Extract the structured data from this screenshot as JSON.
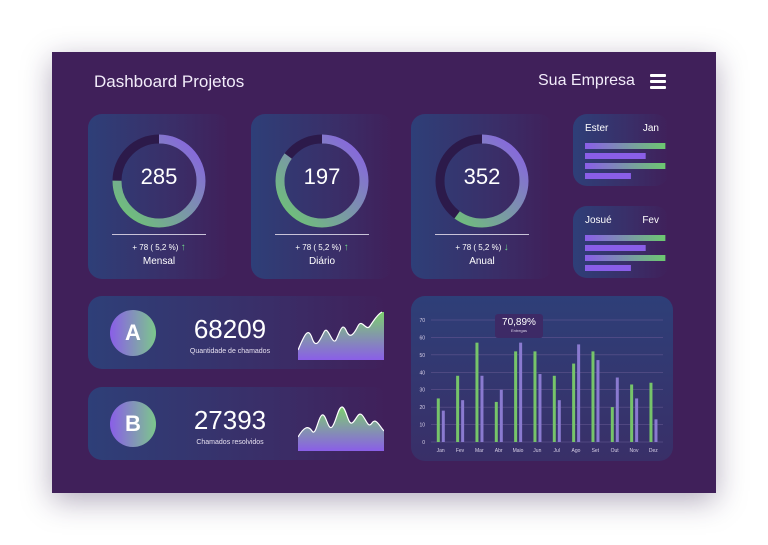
{
  "header": {
    "title": "Dashboard Projetos",
    "company": "Sua Empresa",
    "menu_icon": "hamburger-icon"
  },
  "colors": {
    "background": "#40205a",
    "green": "#6cc96f",
    "purple": "#8a5ee8",
    "track": "#2c1a4a"
  },
  "donuts": [
    {
      "value": "285",
      "delta": "+ 78 ( 5,2 %)",
      "trend": "up",
      "arrow": "↑",
      "label": "Mensal",
      "progress": 0.75
    },
    {
      "value": "197",
      "delta": "+ 78 ( 5,2 %)",
      "trend": "up",
      "arrow": "↑",
      "label": "Diário",
      "progress": 0.85
    },
    {
      "value": "352",
      "delta": "+ 78 ( 5,2 %)",
      "trend": "down",
      "arrow": "↓",
      "label": "Anual",
      "progress": 0.6
    }
  ],
  "people": [
    {
      "name": "Ester",
      "month": "Jan",
      "bars": [
        0.98,
        0.74,
        0.98,
        0.56
      ]
    },
    {
      "name": "Josué",
      "month": "Fev",
      "bars": [
        0.98,
        0.74,
        0.98,
        0.56
      ]
    }
  ],
  "stats": [
    {
      "badge": "A",
      "value": "68209",
      "label": "Quantidade de chamados"
    },
    {
      "badge": "B",
      "value": "27393",
      "label": "Chamados resolvidos"
    }
  ],
  "tooltip": {
    "value": "70,89%",
    "label": "Entregas"
  },
  "chart_data": {
    "type": "bar",
    "categories": [
      "Jan",
      "Fev",
      "Mar",
      "Abr",
      "Maio",
      "Jun",
      "Jul",
      "Ago",
      "Set",
      "Out",
      "Nov",
      "Dez"
    ],
    "ylim": [
      0,
      70
    ],
    "yticks": [
      "0",
      "10",
      "20",
      "30",
      "40",
      "50",
      "60",
      "70"
    ],
    "grid": true,
    "series": [
      {
        "values": [
          25,
          38,
          57,
          23,
          52,
          52,
          38,
          45,
          52,
          20,
          33,
          34
        ]
      },
      {
        "values": [
          18,
          24,
          38,
          30,
          57,
          39,
          24,
          56,
          47,
          37,
          25,
          13
        ]
      }
    ]
  }
}
